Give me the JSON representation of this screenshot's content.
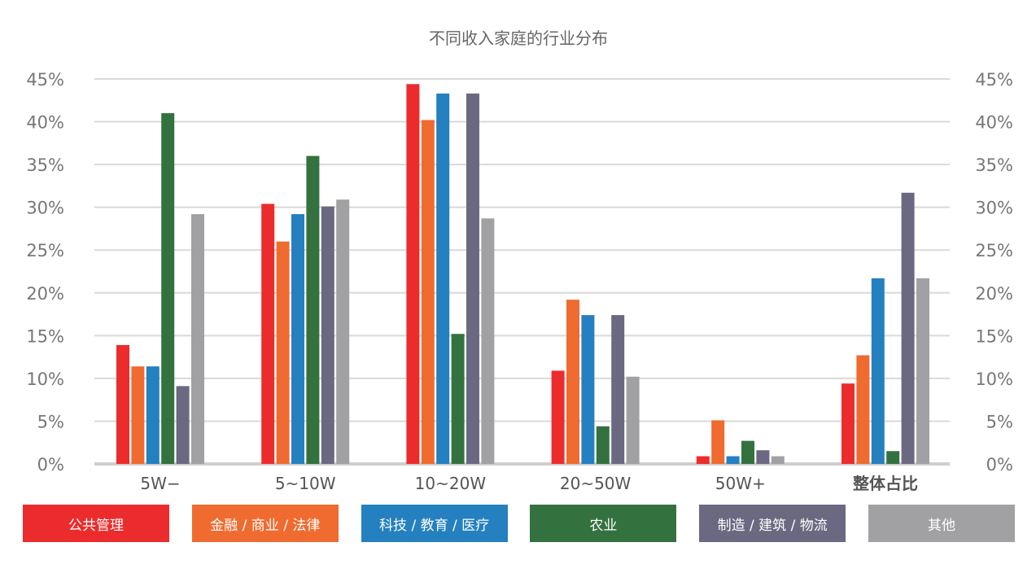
{
  "chart_data": {
    "type": "bar",
    "title": "不同收入家庭的行业分布",
    "categories": [
      "5W−",
      "5~10W",
      "10~20W",
      "20~50W",
      "50W+",
      "整体占比"
    ],
    "series": [
      {
        "name": "公共管理",
        "color": "#ec2c2c",
        "values": [
          13.9,
          30.4,
          44.4,
          10.9,
          0.9,
          9.4
        ]
      },
      {
        "name": "金融 / 商业 / 法律",
        "color": "#ef6b30",
        "values": [
          11.4,
          26.0,
          40.2,
          19.2,
          5.1,
          12.7
        ]
      },
      {
        "name": "科技 / 教育 / 医疗",
        "color": "#2480bf",
        "values": [
          11.4,
          29.2,
          43.3,
          17.4,
          0.9,
          21.7
        ]
      },
      {
        "name": "农业",
        "color": "#33723f",
        "values": [
          41.0,
          36.0,
          15.2,
          4.4,
          2.7,
          1.5
        ]
      },
      {
        "name": "制造 / 建筑 / 物流",
        "color": "#6b6981",
        "values": [
          9.1,
          30.1,
          43.3,
          17.4,
          1.6,
          31.7
        ]
      },
      {
        "name": "其他",
        "color": "#a1a1a4",
        "values": [
          29.2,
          30.9,
          28.7,
          10.2,
          0.9,
          21.7
        ]
      }
    ],
    "y_ticks": [
      "0%",
      "5%",
      "10%",
      "15%",
      "20%",
      "25%",
      "30%",
      "35%",
      "40%",
      "45%"
    ],
    "ylim": [
      0,
      45
    ],
    "grid": true,
    "legend_position": "bottom"
  }
}
